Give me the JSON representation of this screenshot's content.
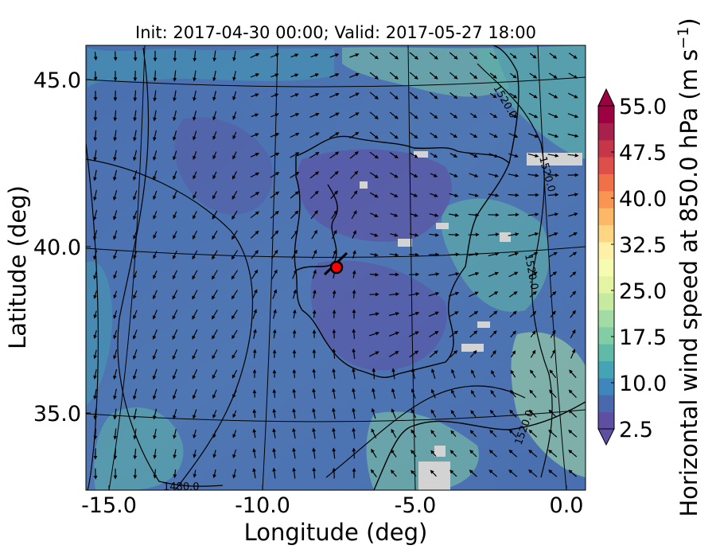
{
  "chart_data": {
    "type": "heatmap",
    "title": "Init: 2017-04-30 00:00; Valid: 2017-05-27 18:00",
    "xlabel": "Longitude (deg)",
    "ylabel": "Latitude (deg)",
    "xlim": [
      -15.8,
      0.2
    ],
    "ylim": [
      32.8,
      46.0
    ],
    "x_ticks": [
      -15.0,
      -10.0,
      -5.0,
      0.0
    ],
    "x_tick_labels": [
      "-15.0",
      "-10.0",
      "-5.0",
      "0.0"
    ],
    "y_ticks": [
      35.0,
      40.0,
      45.0
    ],
    "y_tick_labels": [
      "35.0",
      "40.0",
      "45.0"
    ],
    "grid": true,
    "colorbar": {
      "label": "Horizontal wind speed at 850.0 hPa (m s$^{-1}$)",
      "label_main": "Horizontal wind speed at 850.0 hPa (m s",
      "label_sup": "−1",
      "label_close": ")",
      "range": [
        2.5,
        55.0
      ],
      "ticks": [
        2.5,
        10.0,
        17.5,
        25.0,
        32.5,
        40.0,
        47.5,
        55.0
      ],
      "tick_labels": [
        "2.5",
        "10.0",
        "17.5",
        "25.0",
        "32.5",
        "40.0",
        "47.5",
        "55.0"
      ],
      "extend": "both",
      "colors": [
        "#5e4fa2",
        "#4a68ae",
        "#3f86bc",
        "#44a4b4",
        "#5fbaa8",
        "#81cda5",
        "#a3dba4",
        "#c6eaa0",
        "#e4f4a2",
        "#f6fbb2",
        "#fef0a7",
        "#fed683",
        "#fdb866",
        "#f99553",
        "#f07148",
        "#de4f4a",
        "#c43648",
        "#a8214c",
        "#9e0142"
      ]
    },
    "contour_labels": [
      "1480.0",
      "1520.0",
      "1520.0",
      "1520.0",
      "1520.0"
    ],
    "annotations": [
      {
        "type": "marker",
        "lon": -7.7,
        "lat": 39.3,
        "color": "#ff0000",
        "edgecolor": "#000000"
      }
    ],
    "wind_field": {
      "dominant_speed_range": [
        2.5,
        12.5
      ],
      "max_speed_visible": 22.5,
      "vectors": "quiver arrows"
    }
  }
}
